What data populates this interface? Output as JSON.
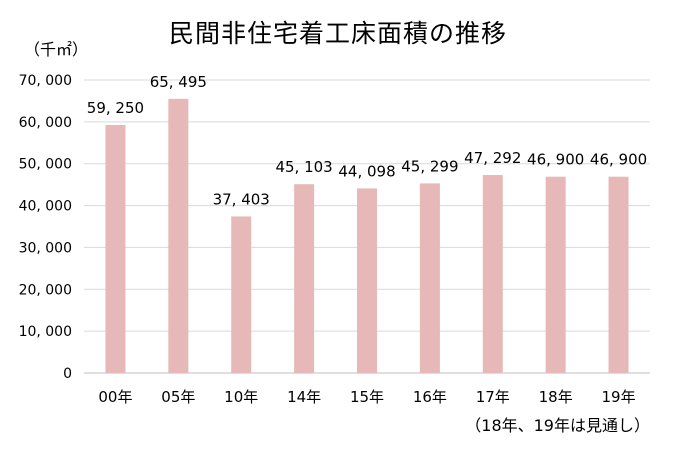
{
  "chart_data": {
    "type": "bar",
    "title": "民間非住宅着工床面積の推移",
    "ylabel": "（千㎡）",
    "note": "（18年、19年は見通し）",
    "categories": [
      "00年",
      "05年",
      "10年",
      "14年",
      "15年",
      "16年",
      "17年",
      "18年",
      "19年"
    ],
    "values": [
      59250,
      65495,
      37403,
      45103,
      44098,
      45299,
      47292,
      46900,
      46900
    ],
    "value_labels": [
      "59, 250",
      "65, 495",
      "37, 403",
      "45, 103",
      "44, 098",
      "45, 299",
      "47, 292",
      "46, 900",
      "46, 900"
    ],
    "ylim": [
      0,
      70000
    ],
    "yticks": [
      0,
      10000,
      20000,
      30000,
      40000,
      50000,
      60000,
      70000
    ],
    "ytick_labels": [
      "0",
      "10, 000",
      "20, 000",
      "30, 000",
      "40, 000",
      "50, 000",
      "60, 000",
      "70, 000"
    ],
    "grid": true,
    "legend": "none",
    "bar_color": "#e6b8b7"
  }
}
